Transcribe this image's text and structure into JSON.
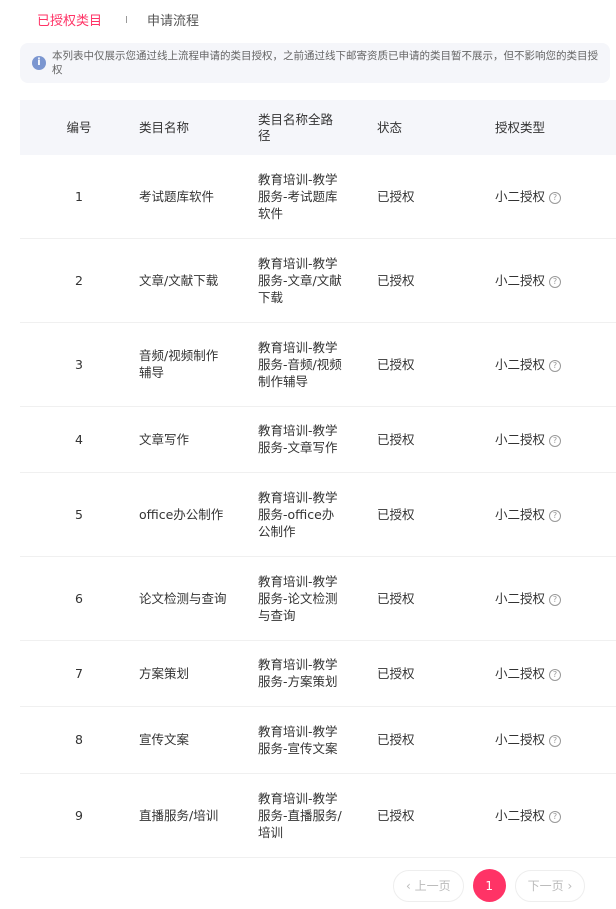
{
  "tabs": [
    {
      "label": "已授权类目",
      "active": true
    },
    {
      "label": "申请流程",
      "active": false
    }
  ],
  "notice": {
    "icon": "info-icon",
    "text": "本列表中仅展示您通过线上流程申请的类目授权，之前通过线下邮寄资质已申请的类目暂不展示，但不影响您的类目授权"
  },
  "table": {
    "headers": [
      "编号",
      "类目名称",
      "类目名称全路径",
      "状态",
      "授权类型"
    ],
    "rows": [
      {
        "no": "1",
        "name": "考试题库软件",
        "path": "教育培训-教学服务-考试题库软件",
        "status": "已授权",
        "type": "小二授权"
      },
      {
        "no": "2",
        "name": "文章/文献下载",
        "path": "教育培训-教学服务-文章/文献下载",
        "status": "已授权",
        "type": "小二授权"
      },
      {
        "no": "3",
        "name": "音频/视频制作辅导",
        "path": "教育培训-教学服务-音频/视频制作辅导",
        "status": "已授权",
        "type": "小二授权"
      },
      {
        "no": "4",
        "name": "文章写作",
        "path": "教育培训-教学服务-文章写作",
        "status": "已授权",
        "type": "小二授权"
      },
      {
        "no": "5",
        "name": "office办公制作",
        "path": "教育培训-教学服务-office办公制作",
        "status": "已授权",
        "type": "小二授权"
      },
      {
        "no": "6",
        "name": "论文检测与查询",
        "path": "教育培训-教学服务-论文检测与查询",
        "status": "已授权",
        "type": "小二授权"
      },
      {
        "no": "7",
        "name": "方案策划",
        "path": "教育培训-教学服务-方案策划",
        "status": "已授权",
        "type": "小二授权"
      },
      {
        "no": "8",
        "name": "宣传文案",
        "path": "教育培训-教学服务-宣传文案",
        "status": "已授权",
        "type": "小二授权"
      },
      {
        "no": "9",
        "name": "直播服务/培训",
        "path": "教育培训-教学服务-直播服务/培训",
        "status": "已授权",
        "type": "小二授权"
      }
    ]
  },
  "pagination": {
    "prev": "上一页",
    "current": "1",
    "next": "下一页"
  },
  "colors": {
    "accent": "#ff3366",
    "info": "#7b96d0"
  }
}
